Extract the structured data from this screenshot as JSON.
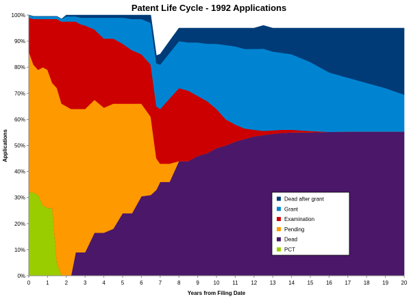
{
  "chart_data": {
    "type": "area",
    "stacked": true,
    "title": "Patent Life Cycle - 1992 Applications",
    "xlabel": "Years from Filing Date",
    "ylabel": "Applications",
    "xlim": [
      0,
      20
    ],
    "ylim": [
      0,
      100
    ],
    "x_ticks": [
      "0",
      "1",
      "2",
      "3",
      "4",
      "5",
      "6",
      "7",
      "8",
      "9",
      "10",
      "11",
      "12",
      "13",
      "14",
      "15",
      "16",
      "17",
      "18",
      "19",
      "20"
    ],
    "y_ticks": [
      "0%",
      "10%",
      "20%",
      "30%",
      "40%",
      "50%",
      "60%",
      "70%",
      "80%",
      "90%",
      "100%"
    ],
    "grid": false,
    "legend_position": "bottom-right-inside",
    "x": [
      0,
      0.25,
      0.5,
      0.75,
      1,
      1.25,
      1.5,
      1.75,
      2,
      2.25,
      2.5,
      2.75,
      3,
      3.5,
      4,
      4.5,
      5,
      5.5,
      6,
      6.5,
      6.8,
      7,
      7.5,
      8,
      8.5,
      9,
      9.5,
      10,
      10.5,
      11,
      11.5,
      12,
      12.5,
      13,
      13.5,
      14,
      15,
      16,
      17,
      18,
      19,
      20
    ],
    "series": [
      {
        "name": "PCT",
        "color": "#9acd00",
        "values": [
          32,
          32,
          31,
          27,
          26,
          26,
          5,
          0,
          0,
          0,
          0,
          0,
          0,
          0,
          0,
          0,
          0,
          0,
          0,
          0,
          0,
          0,
          0,
          0,
          0,
          0,
          0,
          0,
          0,
          0,
          0,
          0,
          0,
          0,
          0,
          0,
          0,
          0,
          0,
          0,
          0,
          0
        ]
      },
      {
        "name": "Dead",
        "color": "#4b1769",
        "values": [
          0,
          0,
          0,
          0,
          0,
          0,
          0,
          0,
          0,
          0,
          9,
          9,
          9,
          16.5,
          16.5,
          18,
          24,
          24,
          30.5,
          31,
          33,
          36,
          36,
          44,
          44,
          46,
          47,
          49,
          50,
          51.5,
          52.5,
          53.5,
          54,
          54.5,
          54.8,
          55,
          55,
          55.2,
          55.3,
          55.3,
          55.3,
          55.3
        ]
      },
      {
        "name": "Pending",
        "color": "#ff9900",
        "values": [
          54,
          49,
          48,
          53,
          53,
          48,
          67,
          66,
          65,
          64,
          55,
          55,
          55,
          51,
          48,
          48,
          42,
          42,
          35.5,
          30,
          12,
          7,
          7,
          0,
          0,
          0,
          0,
          0,
          0,
          0,
          0,
          0,
          0,
          0,
          0,
          0,
          0,
          0,
          0,
          0,
          0,
          0
        ]
      },
      {
        "name": "Examination",
        "color": "#cc0000",
        "values": [
          13,
          17.5,
          19.5,
          18.5,
          19.5,
          24.5,
          26.5,
          31.5,
          32.5,
          33.5,
          33.5,
          32.5,
          32,
          27,
          26.5,
          25,
          23,
          20.5,
          19,
          20,
          20,
          21,
          25,
          28,
          27,
          23,
          20,
          15,
          10,
          6.5,
          4,
          2.5,
          1.6,
          1.3,
          1.2,
          1,
          0.5,
          0,
          0,
          0,
          0,
          0
        ]
      },
      {
        "name": "Grant",
        "color": "#0084d1",
        "values": [
          1,
          1,
          1,
          1,
          1,
          1,
          1,
          1,
          2,
          2,
          2,
          2.5,
          3,
          4.5,
          8,
          8,
          10,
          12,
          13.5,
          16,
          16.5,
          17,
          17.5,
          18,
          18.5,
          20.5,
          22,
          25,
          28.5,
          30,
          30.5,
          31,
          31.5,
          30.2,
          29.5,
          29,
          26.5,
          22.8,
          20.7,
          18.7,
          16.7,
          14.2
        ]
      },
      {
        "name": "Dead after grant",
        "color": "#003b77",
        "values": [
          0,
          0,
          0,
          0,
          0,
          0,
          0,
          0,
          0.5,
          0.5,
          0.5,
          1,
          1,
          1,
          1,
          1,
          1,
          1.5,
          1.5,
          3,
          3,
          4,
          4.5,
          5,
          5.5,
          5.5,
          6,
          6,
          6.5,
          7,
          8,
          8,
          8.9,
          9,
          9.5,
          10,
          13,
          17,
          19,
          21,
          23,
          25.5
        ]
      }
    ],
    "legend_order": [
      "Dead after grant",
      "Grant",
      "Examination",
      "Pending",
      "Dead",
      "PCT"
    ]
  }
}
